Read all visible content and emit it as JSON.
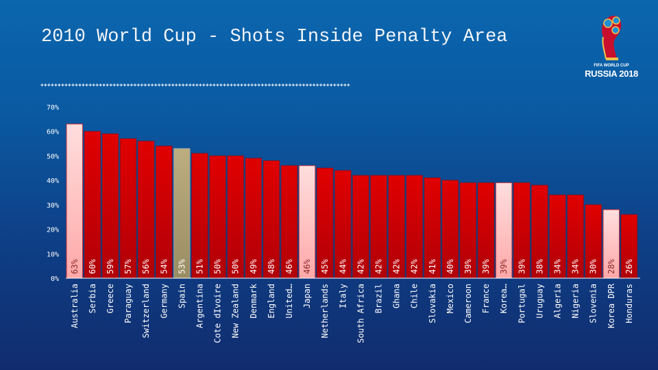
{
  "title": "2010 World Cup - Shots Inside Penalty Area",
  "divider_glyphs": "✦✦✦✦✦✦✦✦✦✦✦✦✦✦✦✦✦✦✦✦✦✦✦✦✦✦✦✦✦✦✦✦✦✦✦✦✦✦✦✦✦✦✦✦✦✦✦✦✦✦✦✦✦✦✦✦✦✦✦✦✦✦✦✦✦✦✦✦✦✦✦✦✦✦✦✦✦✦✦✦✦✦✦✦✦✦✦✦✦✦",
  "logo": {
    "line1": "FIFA WORLD CUP",
    "line2": "RUSSIA 2018",
    "icon": "world-cup-trophy-icon"
  },
  "colors": {
    "bar": "#d40000",
    "highlight_pink": "#ffc8c8",
    "highlight_tan": "#b0a274",
    "axis": "#ffffff"
  },
  "chart_data": {
    "type": "bar",
    "title": "2010 World Cup - Shots Inside Penalty Area",
    "xlabel": "",
    "ylabel": "",
    "ylim": [
      0,
      70
    ],
    "yticks": [
      "0%",
      "10%",
      "20%",
      "30%",
      "40%",
      "50%",
      "60%",
      "70%"
    ],
    "grid": false,
    "categories": [
      "Australia",
      "Serbia",
      "Greece",
      "Paraguay",
      "Switzerland",
      "Germany",
      "Spain",
      "Argentina",
      "Cote dIvoire",
      "New Zealand",
      "Denmark",
      "England",
      "United…",
      "Japan",
      "Netherlands",
      "Italy",
      "South Africa",
      "Brazil",
      "Ghana",
      "Chile",
      "Slovakia",
      "Mexico",
      "Cameroon",
      "France",
      "Korea…",
      "Portugal",
      "Uruguay",
      "Algeria",
      "Nigeria",
      "Slovenia",
      "Korea DPR",
      "Honduras"
    ],
    "values": [
      63,
      60,
      59,
      57,
      56,
      54,
      53,
      51,
      50,
      50,
      49,
      48,
      46,
      46,
      45,
      44,
      42,
      42,
      42,
      42,
      41,
      40,
      39,
      39,
      39,
      39,
      38,
      34,
      34,
      30,
      28,
      26
    ],
    "labels": [
      "63%",
      "60%",
      "59%",
      "57%",
      "56%",
      "54%",
      "53%",
      "51%",
      "50%",
      "50%",
      "49%",
      "48%",
      "46%",
      "46%",
      "45%",
      "44%",
      "42%",
      "42%",
      "42%",
      "42%",
      "41%",
      "40%",
      "39%",
      "39%",
      "39%",
      "39%",
      "38%",
      "34%",
      "34%",
      "30%",
      "28%",
      "26%"
    ],
    "highlight": [
      "pink",
      "",
      "",
      "",
      "",
      "",
      "tan",
      "",
      "",
      "",
      "",
      "",
      "",
      "pink",
      "",
      "",
      "",
      "",
      "",
      "",
      "",
      "",
      "",
      "",
      "pink",
      "",
      "",
      "",
      "",
      "",
      "pink",
      ""
    ]
  }
}
